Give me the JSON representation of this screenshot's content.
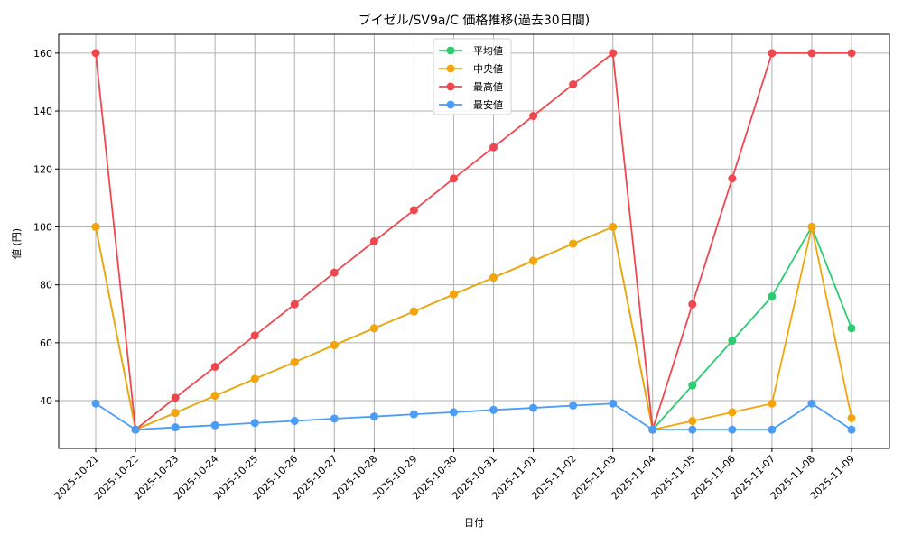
{
  "chart_data": {
    "type": "line",
    "title": "ブイゼル/SV9a/C 価格推移(過去30日間)",
    "xlabel": "日付",
    "ylabel": "値 (円)",
    "ylim": [
      23.5,
      166.5
    ],
    "yticks": [
      40,
      60,
      80,
      100,
      120,
      140,
      160
    ],
    "grid": true,
    "legend_position": "upper center",
    "categories": [
      "2025-10-21",
      "2025-10-22",
      "2025-10-23",
      "2025-10-24",
      "2025-10-25",
      "2025-10-26",
      "2025-10-27",
      "2025-10-28",
      "2025-10-29",
      "2025-10-30",
      "2025-10-31",
      "2025-11-01",
      "2025-11-02",
      "2025-11-03",
      "2025-11-04",
      "2025-11-05",
      "2025-11-06",
      "2025-11-07",
      "2025-11-08",
      "2025-11-09"
    ],
    "series": [
      {
        "name": "平均値",
        "color": "#2ecc71",
        "values": [
          100,
          30,
          35.8,
          41.7,
          47.5,
          53.3,
          59.2,
          65,
          70.8,
          76.7,
          82.5,
          88.3,
          94.2,
          100,
          30,
          45.3,
          60.7,
          76,
          100,
          65
        ]
      },
      {
        "name": "中央値",
        "color": "#f5a50b",
        "values": [
          100,
          30,
          35.8,
          41.7,
          47.5,
          53.3,
          59.2,
          65,
          70.8,
          76.7,
          82.5,
          88.3,
          94.2,
          100,
          30,
          33,
          36,
          39,
          100,
          34
        ]
      },
      {
        "name": "最高値",
        "color": "#f0474f",
        "values": [
          160,
          30,
          41,
          51.7,
          62.5,
          73.3,
          84.2,
          95,
          105.8,
          116.7,
          127.5,
          138.3,
          149.2,
          160,
          30,
          73.3,
          116.7,
          160,
          160,
          160
        ]
      },
      {
        "name": "最安値",
        "color": "#4a9cf5",
        "values": [
          39,
          30,
          30.8,
          31.5,
          32.3,
          33,
          33.8,
          34.5,
          35.3,
          36,
          36.8,
          37.5,
          38.3,
          39,
          30,
          30,
          30,
          30,
          39,
          30
        ]
      }
    ]
  }
}
